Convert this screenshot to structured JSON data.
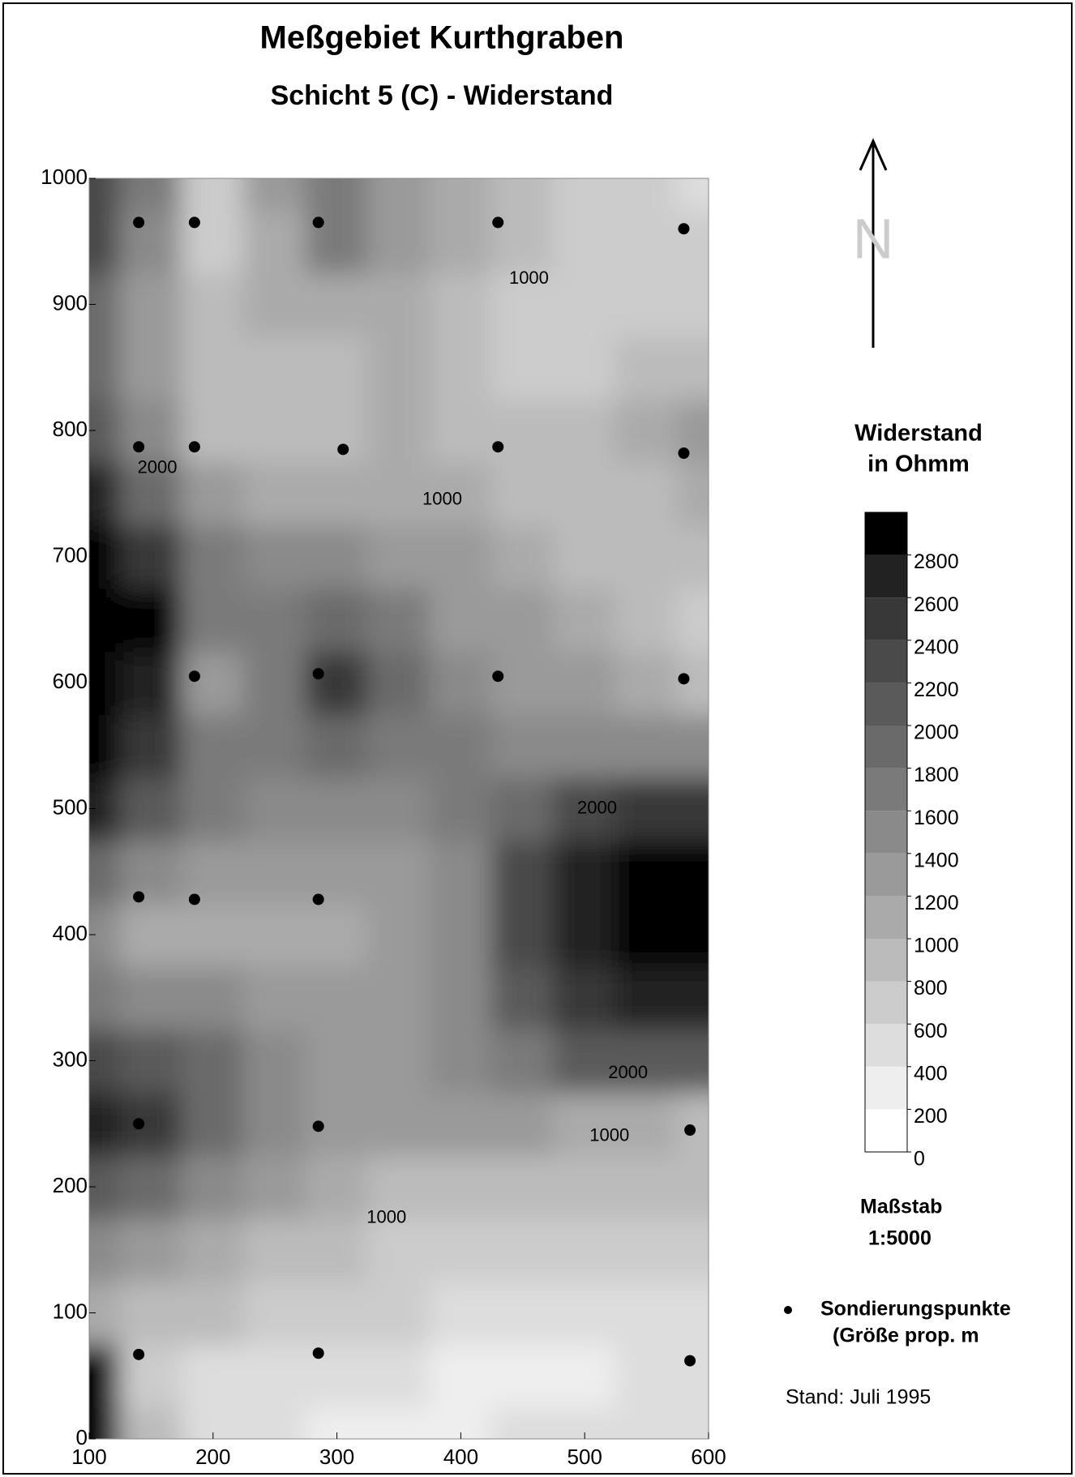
{
  "chart_data": {
    "type": "contour",
    "title": "Meßgebiet Kurthgraben",
    "subtitle": "Schicht 5 (C) - Widerstand",
    "x": [
      100,
      150,
      200,
      250,
      300,
      350,
      400,
      450,
      500,
      550,
      600
    ],
    "y": [
      0,
      50,
      100,
      150,
      200,
      250,
      300,
      350,
      400,
      450,
      500,
      550,
      600,
      650,
      700,
      750,
      800,
      850,
      900,
      950,
      1000
    ],
    "z": [
      [
        3000,
        800,
        400,
        400,
        300,
        300,
        300,
        400,
        400,
        400,
        400
      ],
      [
        3000,
        700,
        500,
        500,
        400,
        400,
        300,
        300,
        300,
        400,
        400
      ],
      [
        1000,
        900,
        800,
        700,
        600,
        600,
        500,
        500,
        500,
        500,
        500
      ],
      [
        1400,
        1200,
        1000,
        900,
        800,
        700,
        700,
        700,
        600,
        600,
        600
      ],
      [
        2000,
        1800,
        1400,
        1200,
        1100,
        900,
        900,
        800,
        800,
        800,
        800
      ],
      [
        2600,
        2400,
        1800,
        1400,
        1300,
        1200,
        1200,
        1200,
        1100,
        1000,
        900
      ],
      [
        2200,
        2000,
        1800,
        1400,
        1300,
        1300,
        1400,
        1700,
        2000,
        2100,
        2100
      ],
      [
        1600,
        1400,
        1400,
        1300,
        1200,
        1300,
        1500,
        2000,
        2400,
        2600,
        2600
      ],
      [
        1400,
        1000,
        1000,
        1000,
        1000,
        1300,
        1500,
        2200,
        2600,
        3000,
        3000
      ],
      [
        1800,
        1400,
        1200,
        1200,
        1200,
        1300,
        1500,
        2200,
        2600,
        3000,
        3000
      ],
      [
        2600,
        2000,
        1600,
        1500,
        1500,
        1500,
        1600,
        1900,
        2200,
        2400,
        2400
      ],
      [
        3000,
        2400,
        1600,
        1600,
        1800,
        1700,
        1600,
        1500,
        1500,
        1400,
        1400
      ],
      [
        3000,
        2600,
        1200,
        1600,
        2400,
        1800,
        1500,
        1300,
        1200,
        1000,
        800
      ],
      [
        3000,
        2800,
        1600,
        1600,
        1800,
        1600,
        1300,
        1200,
        1000,
        800,
        600
      ],
      [
        3000,
        2400,
        1600,
        1400,
        1400,
        1300,
        1200,
        1000,
        900,
        800,
        800
      ],
      [
        2600,
        1800,
        1200,
        1000,
        1000,
        1100,
        1000,
        900,
        900,
        900,
        1000
      ],
      [
        2000,
        1400,
        900,
        800,
        900,
        1000,
        900,
        800,
        800,
        1000,
        1200
      ],
      [
        1800,
        1200,
        900,
        800,
        900,
        1000,
        800,
        700,
        700,
        800,
        900
      ],
      [
        1800,
        1200,
        900,
        1000,
        1100,
        1000,
        900,
        700,
        600,
        600,
        700
      ],
      [
        2200,
        1400,
        600,
        1000,
        1600,
        1200,
        1000,
        800,
        700,
        600,
        600
      ],
      [
        2200,
        1600,
        600,
        1200,
        1600,
        1200,
        1000,
        900,
        700,
        600,
        400
      ]
    ],
    "xlim": [
      100,
      600
    ],
    "xticks": [
      100,
      200,
      300,
      400,
      500,
      600
    ],
    "ylim": [
      0,
      1000
    ],
    "yticks": [
      0,
      100,
      200,
      300,
      400,
      500,
      600,
      700,
      800,
      900,
      1000
    ],
    "zlim": [
      0,
      3000
    ],
    "zticks": [
      0,
      200,
      400,
      600,
      800,
      1000,
      1200,
      1400,
      1600,
      1800,
      2000,
      2200,
      2400,
      2600,
      2800
    ],
    "colors": [
      "#ffffff",
      "#eeeeee",
      "#dddddd",
      "#cccccc",
      "#bbbbbb",
      "#aaaaaa",
      "#9a9a9a",
      "#8a8a8a",
      "#7a7a7a",
      "#6a6a6a",
      "#5a5a5a",
      "#4a4a4a",
      "#383838",
      "#222222",
      "#000000"
    ],
    "colorbar_title": [
      "Widerstand",
      "in Ohmm"
    ],
    "points": {
      "x": [
        140,
        185,
        285,
        430,
        580,
        140,
        185,
        305,
        430,
        580,
        185,
        285,
        430,
        580,
        140,
        185,
        285,
        140,
        285,
        585,
        140,
        285,
        585
      ],
      "y": [
        965,
        965,
        965,
        965,
        960,
        787,
        787,
        785,
        787,
        782,
        605,
        607,
        605,
        603,
        430,
        428,
        428,
        250,
        248,
        245,
        67,
        68,
        62
      ]
    },
    "contour_labels": [
      {
        "text": "1000",
        "x": 455,
        "y": 920
      },
      {
        "text": "1000",
        "x": 385,
        "y": 745
      },
      {
        "text": "2000",
        "x": 155,
        "y": 770
      },
      {
        "text": "2000",
        "x": 510,
        "y": 500
      },
      {
        "text": "2000",
        "x": 535,
        "y": 290
      },
      {
        "text": "1000",
        "x": 520,
        "y": 240
      },
      {
        "text": "1000",
        "x": 340,
        "y": 175
      }
    ],
    "north": "N",
    "scale_label": "Maßstab",
    "scale": "1:5000",
    "points_label": "Sondierungspunkte",
    "points_note": "(Größe prop. m",
    "stand": "Stand: Juli 1995"
  }
}
